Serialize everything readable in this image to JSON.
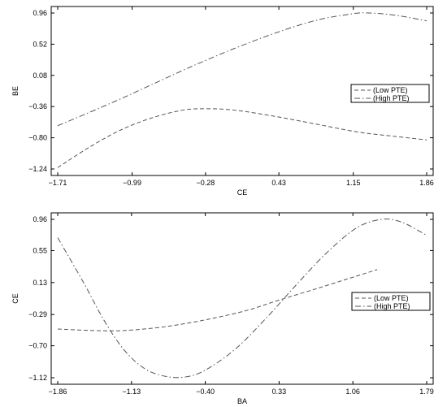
{
  "chart_data": [
    {
      "type": "line",
      "xlabel": "CE",
      "ylabel": "BE",
      "xlim": [
        -1.71,
        1.86
      ],
      "ylim": [
        -1.24,
        0.96
      ],
      "xticks": [
        "-1.71",
        "-0.99",
        "-0.28",
        "0.43",
        "1.15",
        "1.86"
      ],
      "yticks": [
        "-1.24",
        "-0.80",
        "-0.36",
        "0.08",
        "0.52",
        "0.96"
      ],
      "legend_position": "right",
      "series": [
        {
          "name": "(Low PTE)",
          "dash": "dashed",
          "color": "#555555",
          "x": [
            -1.71,
            -1.4,
            -1.1,
            -0.8,
            -0.5,
            -0.28,
            0.0,
            0.4,
            0.8,
            1.2,
            1.55,
            1.86
          ],
          "y": [
            -1.22,
            -0.93,
            -0.69,
            -0.52,
            -0.41,
            -0.39,
            -0.41,
            -0.5,
            -0.61,
            -0.72,
            -0.78,
            -0.83
          ]
        },
        {
          "name": "(High PTE)",
          "dash": "dashdot",
          "color": "#555555",
          "x": [
            -1.71,
            -1.4,
            -1.1,
            -0.8,
            -0.5,
            -0.28,
            0.0,
            0.4,
            0.8,
            1.15,
            1.3,
            1.55,
            1.86
          ],
          "y": [
            -0.63,
            -0.44,
            -0.25,
            -0.05,
            0.15,
            0.29,
            0.46,
            0.68,
            0.86,
            0.95,
            0.96,
            0.93,
            0.85
          ]
        }
      ]
    },
    {
      "type": "line",
      "xlabel": "BA",
      "ylabel": "CE",
      "xlim": [
        -1.86,
        1.79
      ],
      "ylim": [
        -1.12,
        0.96
      ],
      "xticks": [
        "-1.86",
        "-1.13",
        "-0.40",
        "0.33",
        "1.06",
        "1.79"
      ],
      "yticks": [
        "-1.12",
        "-0.70",
        "-0.29",
        "0.13",
        "0.55",
        "0.96"
      ],
      "legend_position": "right",
      "series": [
        {
          "name": "(Low PTE)",
          "dash": "dashed",
          "color": "#555555",
          "x": [
            -1.86,
            -1.5,
            -1.2,
            -0.8,
            -0.4,
            0.0,
            0.33,
            0.7,
            1.06,
            1.3
          ],
          "y": [
            -0.48,
            -0.5,
            -0.5,
            -0.45,
            -0.36,
            -0.24,
            -0.1,
            0.05,
            0.2,
            0.3
          ]
        },
        {
          "name": "(High PTE)",
          "dash": "dashdot",
          "color": "#555555",
          "x": [
            -1.86,
            -1.6,
            -1.4,
            -1.2,
            -1.0,
            -0.8,
            -0.6,
            -0.4,
            -0.1,
            0.2,
            0.5,
            0.8,
            1.1,
            1.35,
            1.55,
            1.79
          ],
          "y": [
            0.72,
            0.12,
            -0.37,
            -0.76,
            -1.0,
            -1.1,
            -1.11,
            -1.02,
            -0.74,
            -0.34,
            0.1,
            0.52,
            0.85,
            0.96,
            0.92,
            0.75
          ]
        }
      ]
    }
  ]
}
